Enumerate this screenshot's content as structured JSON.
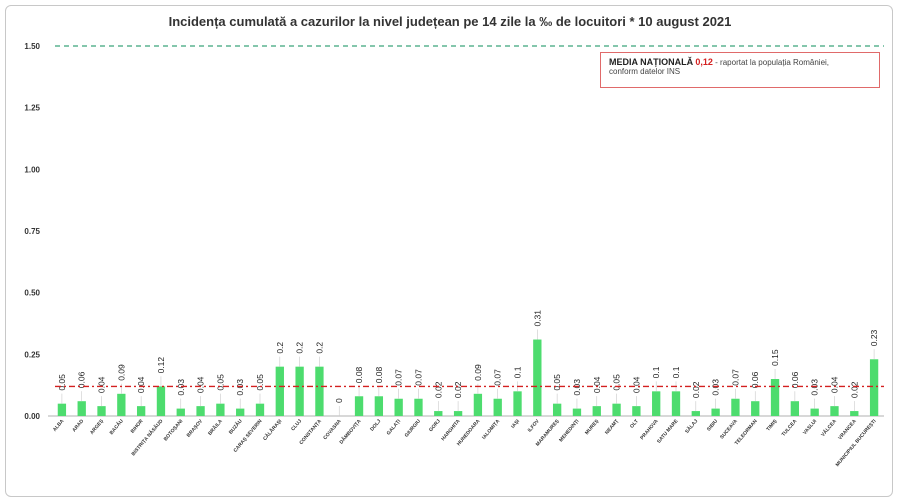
{
  "chart_data": {
    "type": "bar",
    "title": "Incidența cumulată a cazurilor la nivel județean pe 14 zile la ‰ de locuitori *  10 august 2021",
    "xlabel": "",
    "ylabel": "",
    "ylim": [
      0,
      1.5
    ],
    "yticks": [
      "0.00",
      "0.25",
      "0.50",
      "0.75",
      "1.00",
      "1.25",
      "1.50"
    ],
    "threshold_line": 1.5,
    "national_average": 0.12,
    "grid": false,
    "legend_position": "top-right",
    "colors": {
      "bar": "#4ddc6e",
      "average_line": "#d42020",
      "threshold_line": "#3aa37a"
    },
    "categories": [
      "ALBA",
      "ARAD",
      "ARGEȘ",
      "BACĂU",
      "BIHOR",
      "BISTRIȚA NĂSĂUD",
      "BOTOȘANI",
      "BRAȘOV",
      "BRĂILA",
      "BUZĂU",
      "CARAȘ SEVERIN",
      "CĂLĂRAȘI",
      "CLUJ",
      "CONSTANȚA",
      "COVASNA",
      "DÂMBOVIȚA",
      "DOLJ",
      "GALAȚI",
      "GIURGIU",
      "GORJ",
      "HARGHITA",
      "HUNEDOARA",
      "IALOMIȚA",
      "IAȘI",
      "ILFOV",
      "MARAMUREȘ",
      "MEHEDINȚI",
      "MUREȘ",
      "NEAMȚ",
      "OLT",
      "PRAHOVA",
      "SATU MARE",
      "SĂLAJ",
      "SIBIU",
      "SUCEAVA",
      "TELEORMAN",
      "TIMIȘ",
      "TULCEA",
      "VASLUI",
      "VÂLCEA",
      "VRANCEA",
      "MUNICIPIUL BUCUREȘTI"
    ],
    "values": [
      0.05,
      0.06,
      0.04,
      0.09,
      0.04,
      0.12,
      0.03,
      0.04,
      0.05,
      0.03,
      0.05,
      0.2,
      0.2,
      0.2,
      0,
      0.08,
      0.08,
      0.07,
      0.07,
      0.02,
      0.02,
      0.09,
      0.07,
      0.1,
      0.31,
      0.05,
      0.03,
      0.04,
      0.05,
      0.04,
      0.1,
      0.1,
      0.02,
      0.03,
      0.07,
      0.06,
      0.15,
      0.06,
      0.03,
      0.04,
      0.02,
      0.23
    ],
    "value_labels": [
      "0.05",
      "0.06",
      "0.04",
      "0.09",
      "0.04",
      "0.12",
      "0.03",
      "0.04",
      "0.05",
      "0.03",
      "0.05",
      "0.2",
      "0.2",
      "0.2",
      "0",
      "0.08",
      "0.08",
      "0.07",
      "0.07",
      "0.02",
      "0.02",
      "0.09",
      "0.07",
      "0.1",
      "0.31",
      "0.05",
      "0.03",
      "0.04",
      "0.05",
      "0.04",
      "0.1",
      "0.1",
      "0.02",
      "0.03",
      "0.07",
      "0.06",
      "0.15",
      "0.06",
      "0.03",
      "0.04",
      "0.02",
      "0.23"
    ]
  },
  "legend": {
    "label": "MEDIA NAȚIONALĂ",
    "value": "0,12",
    "text_line1": "- raportat la populația României,",
    "text_line2": "conform datelor INS"
  }
}
